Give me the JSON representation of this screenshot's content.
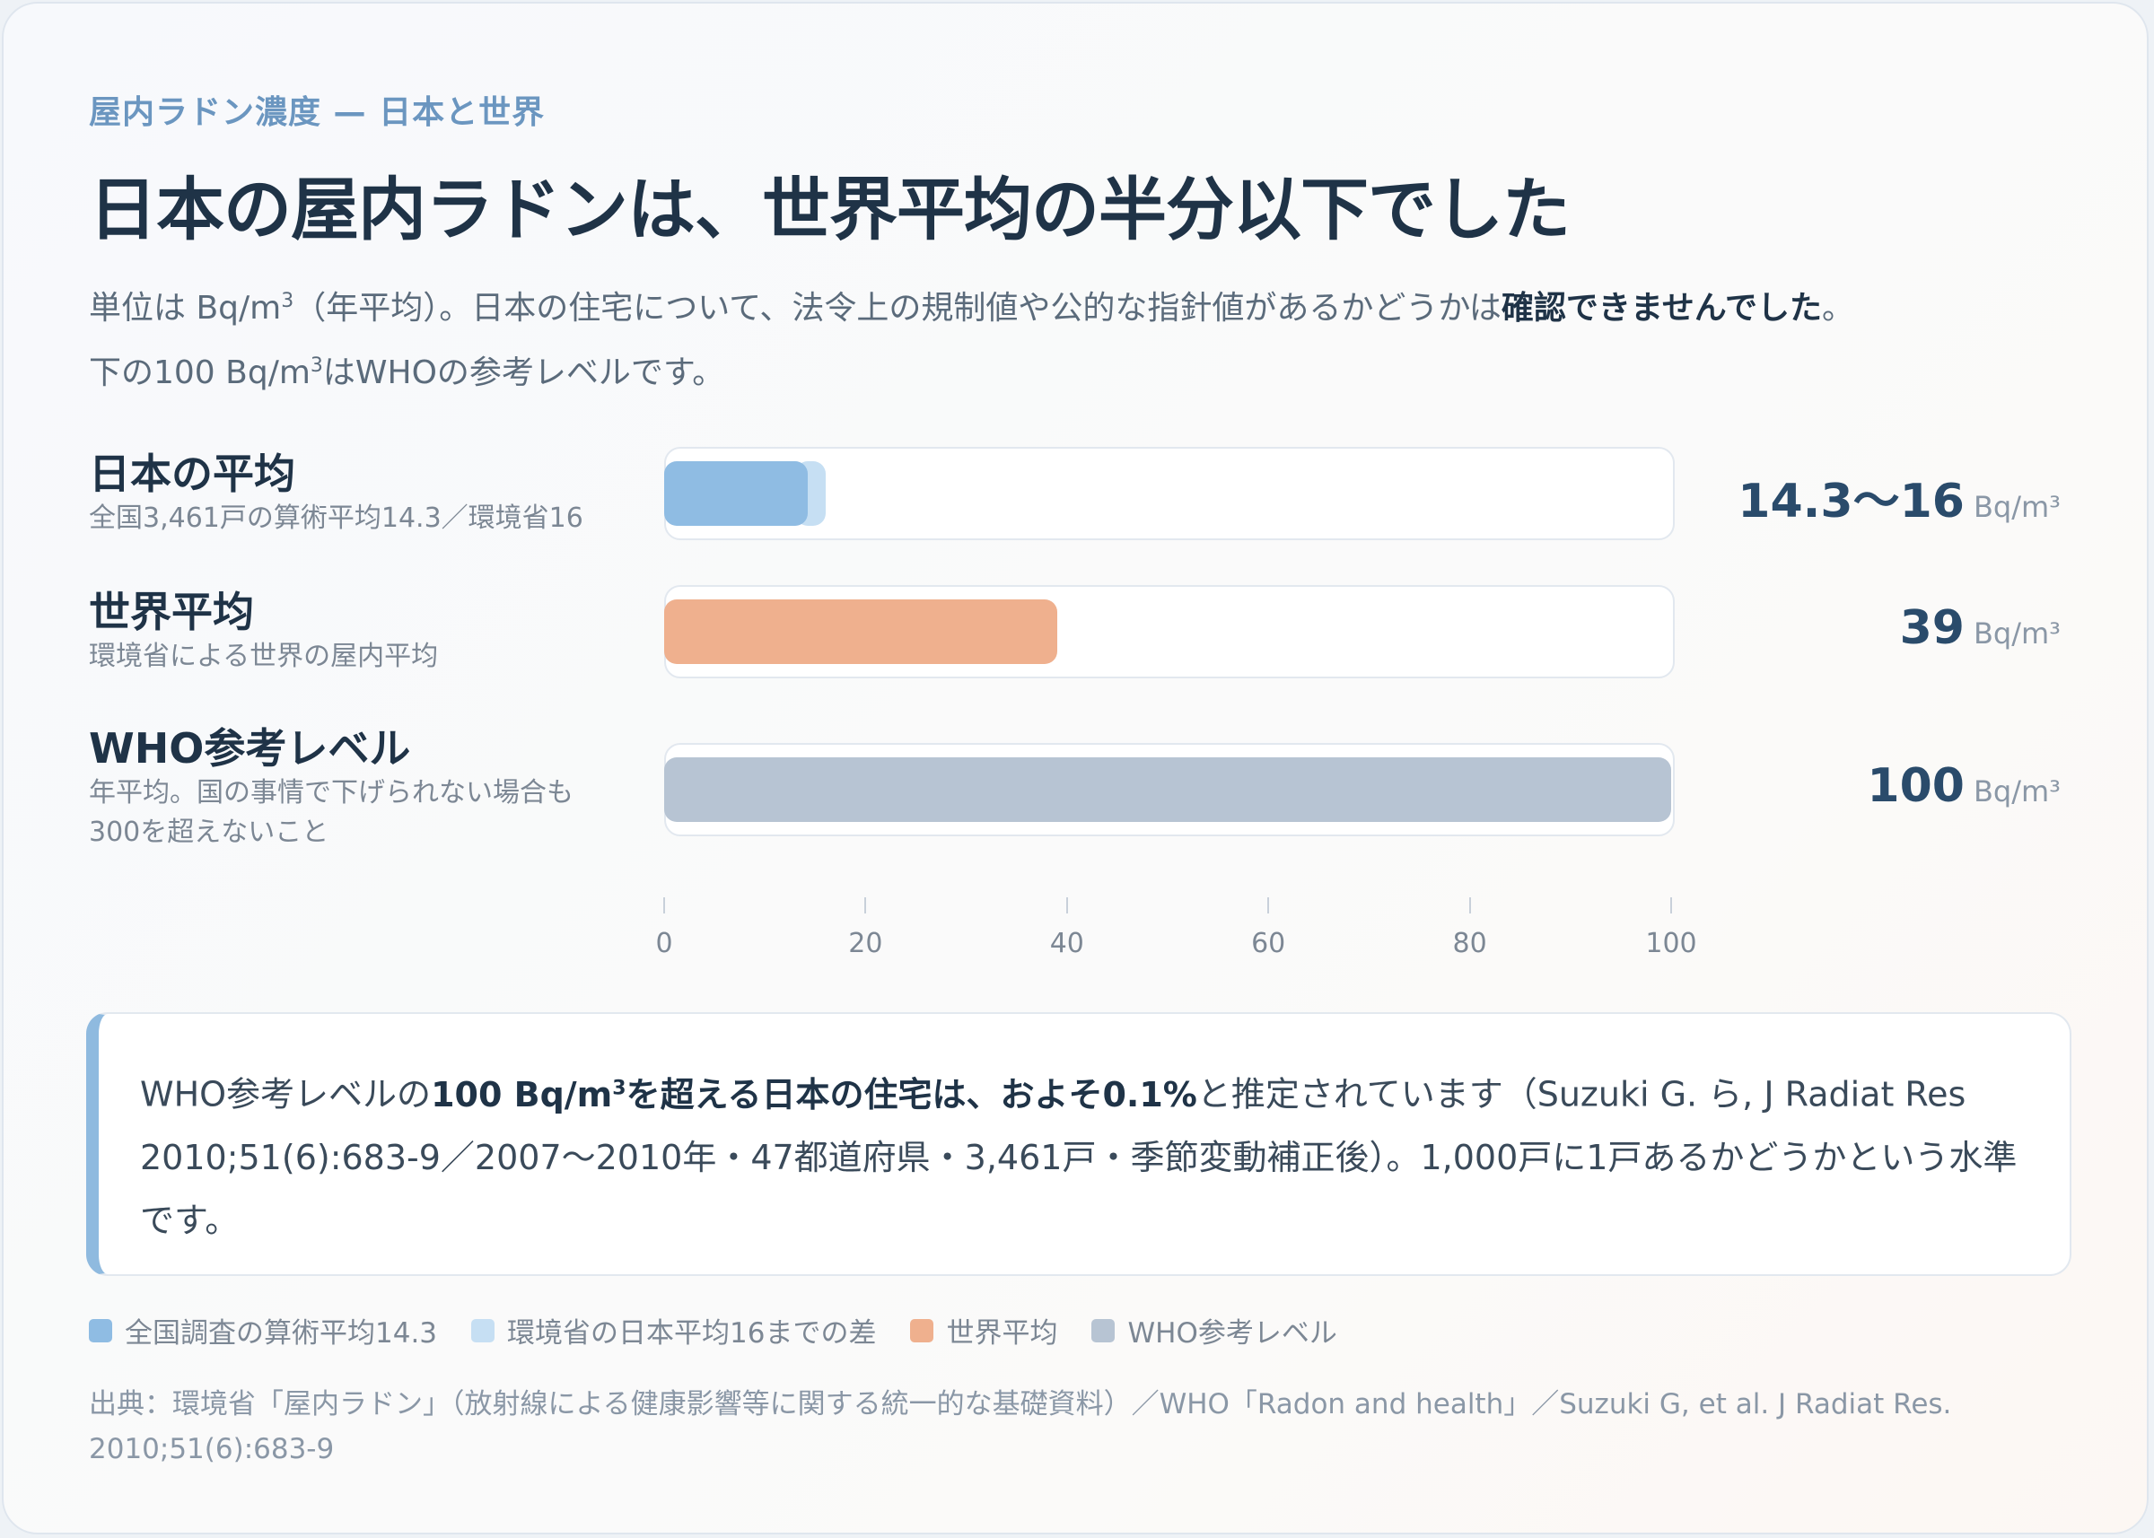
{
  "header": {
    "eyebrow": "屋内ラドン濃度 — 日本と世界",
    "title": "日本の屋内ラドンは、世界平均の半分以下でした",
    "desc_line1_a": "単位は Bq/m",
    "desc_line1_sup": "3",
    "desc_line1_b": "（年平均）。日本の住宅について、法令上の規制値や公的な指針値があるかどうかは",
    "desc_line1_bold": "確認できませんでした",
    "desc_line1_end": "。",
    "desc_line2_a": "下の100 Bq/m",
    "desc_line2_sup": "3",
    "desc_line2_b": "はWHOの参考レベルです。"
  },
  "chart_data": {
    "type": "bar",
    "orientation": "horizontal",
    "unit": "Bq/m³",
    "xlim": [
      0,
      100
    ],
    "ticks": [
      0,
      20,
      40,
      60,
      80,
      100
    ],
    "tick_labels": [
      "0",
      "20",
      "40",
      "60",
      "80",
      "100"
    ],
    "rows": [
      {
        "label": "日本の平均",
        "sublabel": "全国3,461戸の算術平均14.3／環境省16",
        "value_text": "14.3〜16",
        "unit_text": "Bq/m³",
        "segments": [
          {
            "from": 0,
            "to": 14.3,
            "color": "#8fbce3"
          },
          {
            "from": 14.3,
            "to": 16,
            "color": "#c6dff3"
          }
        ]
      },
      {
        "label": "世界平均",
        "sublabel": "環境省による世界の屋内平均",
        "value_text": "39",
        "unit_text": "Bq/m³",
        "segments": [
          {
            "from": 0,
            "to": 39,
            "color": "#efb08e"
          }
        ]
      },
      {
        "label": "WHO参考レベル",
        "sublabel": "年平均。国の事情で下げられない場合も",
        "sublabel2": "300を超えないこと",
        "value_text": "100",
        "unit_text": "Bq/m³",
        "segments": [
          {
            "from": 0,
            "to": 100,
            "color": "#b7c4d3"
          }
        ]
      }
    ],
    "legend": [
      {
        "label": "全国調査の算術平均14.3",
        "color": "#8fbce3"
      },
      {
        "label": "環境省の日本平均16までの差",
        "color": "#c6dff3"
      },
      {
        "label": "世界平均",
        "color": "#efb08e"
      },
      {
        "label": "WHO参考レベル",
        "color": "#b7c4d3"
      }
    ]
  },
  "note": {
    "t1": "WHO参考レベルの",
    "b1": "100 Bq/m",
    "b1_sup": "3",
    "b2": "を超える日本の住宅は、およそ0.1%",
    "t2": "と推定されています（Suzuki G. ら, J Radiat Res 2010;51(6):683-9／2007〜2010年・47都道府県・3,461戸・季節変動補正後）。1,000戸に1戸あるかどうかという水準です。"
  },
  "source": "出典：環境省「屋内ラドン」（放射線による健康影響等に関する統一的な基礎資料）／WHO「Radon and health」／Suzuki G, et al. J Radiat Res. 2010;51(6):683-9"
}
